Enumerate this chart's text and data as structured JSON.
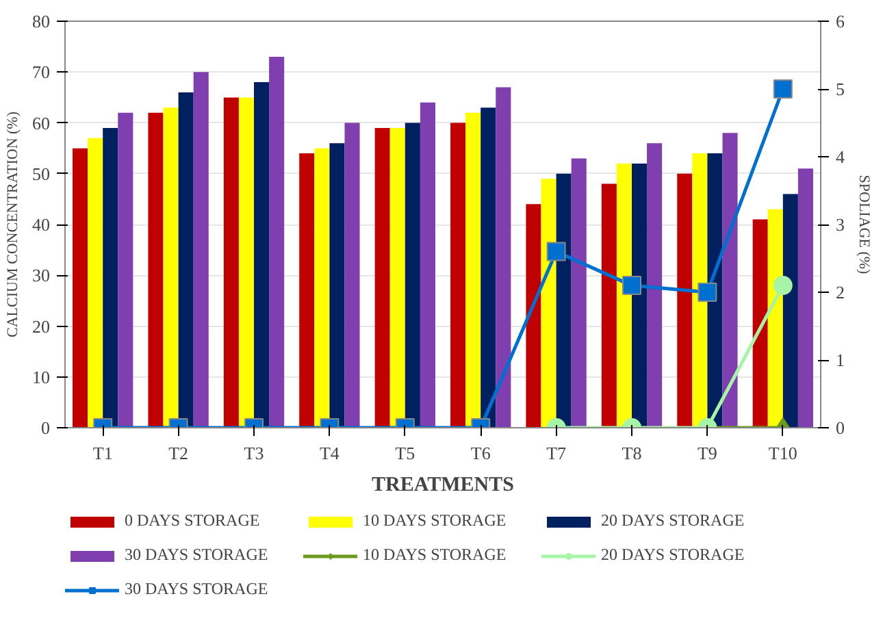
{
  "chart_data": {
    "type": "bar",
    "xlabel": "TREATMENTS",
    "ylabel": "CALCIUM CONCENTRATION (%)",
    "y2label": "SPOLIAGE (%)",
    "categories": [
      "T1",
      "T2",
      "T3",
      "T4",
      "T5",
      "T6",
      "T7",
      "T8",
      "T9",
      "T10"
    ],
    "series": [
      {
        "name": "0 DAYS STORAGE",
        "color": "#c00000",
        "values": [
          55,
          62,
          65,
          54,
          59,
          60,
          44,
          48,
          50,
          41
        ]
      },
      {
        "name": "10 DAYS STORAGE",
        "color": "#ffff00",
        "values": [
          57,
          63,
          65,
          55,
          59,
          62,
          49,
          52,
          54,
          43
        ]
      },
      {
        "name": "20 DAYS STORAGE",
        "color": "#002060",
        "values": [
          59,
          66,
          68,
          56,
          60,
          63,
          50,
          52,
          54,
          46
        ]
      },
      {
        "name": "30 DAYS STORAGE",
        "color": "#7f3fae",
        "values": [
          62,
          70,
          73,
          60,
          64,
          67,
          53,
          56,
          58,
          51
        ]
      },
      {
        "name": "10 DAYS STORAGE",
        "type": "line",
        "axis": "y2",
        "marker": "diamond",
        "color": "#6b9a1f",
        "values": [
          null,
          null,
          null,
          null,
          null,
          null,
          null,
          null,
          0,
          0
        ]
      },
      {
        "name": "20 DAYS STORAGE",
        "type": "line",
        "axis": "y2",
        "marker": "circle",
        "color": "#a6f5a6",
        "values": [
          null,
          null,
          null,
          null,
          null,
          null,
          0,
          0,
          0,
          2.1
        ]
      },
      {
        "name": "30 DAYS STORAGE",
        "type": "line",
        "axis": "y2",
        "marker": "square",
        "color": "#0070d0",
        "values": [
          0,
          0,
          0,
          0,
          0,
          0,
          2.6,
          2.1,
          2.0,
          5.0
        ]
      }
    ],
    "ylim": [
      0,
      80
    ],
    "yticks": [
      0,
      10,
      20,
      30,
      40,
      50,
      60,
      70,
      80
    ],
    "y2lim": [
      0,
      6
    ],
    "y2ticks": [
      0,
      1,
      2,
      3,
      4,
      5,
      6
    ],
    "grid": "y",
    "legend": "bottom"
  }
}
